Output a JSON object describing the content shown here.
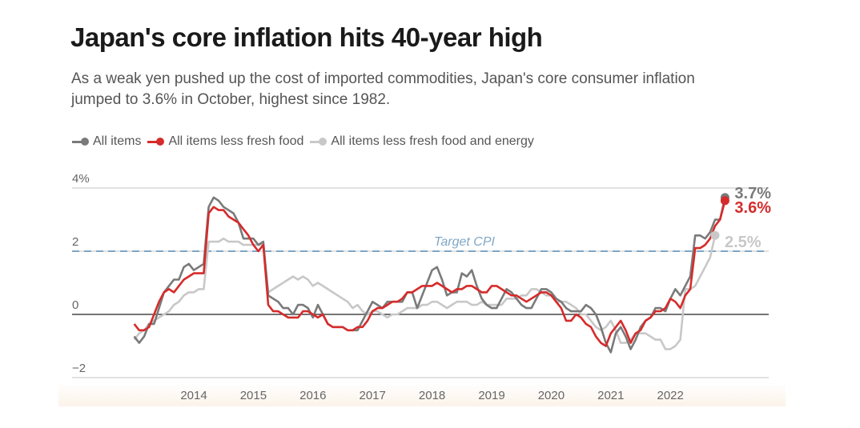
{
  "header": {
    "title": "Japan's core inflation hits 40-year high",
    "subtitle": "As a weak yen pushed up the cost of imported commodities, Japan's core consumer inflation jumped to 3.6% in October, highest since 1982."
  },
  "legend": [
    {
      "label": "All items",
      "color": "#7a7a7a"
    },
    {
      "label": "All items less fresh food",
      "color": "#d62b2b"
    },
    {
      "label": "All items less fresh food and energy",
      "color": "#c8c8c8"
    }
  ],
  "chart_data": {
    "type": "line",
    "title": "Japan's core inflation hits 40-year high",
    "xlabel": "",
    "ylabel": "%",
    "ylim": [
      -2,
      4
    ],
    "yticks": [
      {
        "value": 4,
        "label": "4%"
      },
      {
        "value": 2,
        "label": "2"
      },
      {
        "value": 0,
        "label": "0"
      },
      {
        "value": -2,
        "label": "−2"
      }
    ],
    "xticks": [
      {
        "value": 2014,
        "label": "2014"
      },
      {
        "value": 2015,
        "label": "2015"
      },
      {
        "value": 2016,
        "label": "2016"
      },
      {
        "value": 2017,
        "label": "2017"
      },
      {
        "value": 2018,
        "label": "2018"
      },
      {
        "value": 2019,
        "label": "2019"
      },
      {
        "value": 2020,
        "label": "2020"
      },
      {
        "value": 2021,
        "label": "2021"
      },
      {
        "value": 2022,
        "label": "2022"
      }
    ],
    "xlim": [
      2012.0,
      2023.1
    ],
    "x_start": "2013-01",
    "x_frequency": "monthly",
    "reference_line": {
      "value": 2,
      "label": "Target CPI",
      "color": "#7fa7c6"
    },
    "series": [
      {
        "name": "All items",
        "color": "#7a7a7a",
        "end_label": "3.7%",
        "values": [
          -0.7,
          -0.9,
          -0.7,
          -0.3,
          -0.3,
          0.2,
          0.7,
          0.9,
          1.1,
          1.1,
          1.5,
          1.6,
          1.4,
          1.5,
          1.6,
          3.4,
          3.7,
          3.6,
          3.4,
          3.3,
          3.2,
          2.9,
          2.4,
          2.4,
          2.4,
          2.2,
          2.3,
          0.6,
          0.5,
          0.4,
          0.2,
          0.2,
          0.0,
          0.3,
          0.3,
          0.2,
          -0.1,
          0.3,
          0.0,
          -0.3,
          -0.4,
          -0.4,
          -0.4,
          -0.5,
          -0.5,
          -0.5,
          -0.2,
          0.1,
          0.4,
          0.3,
          0.2,
          0.4,
          0.4,
          0.4,
          0.4,
          0.7,
          0.7,
          0.2,
          0.6,
          1.0,
          1.4,
          1.5,
          1.1,
          0.6,
          0.7,
          0.7,
          1.3,
          1.2,
          1.4,
          0.9,
          0.5,
          0.3,
          0.2,
          0.2,
          0.5,
          0.8,
          0.7,
          0.5,
          0.3,
          0.2,
          0.2,
          0.5,
          0.8,
          0.8,
          0.7,
          0.5,
          0.4,
          0.2,
          0.1,
          0.1,
          0.1,
          0.3,
          0.2,
          0.0,
          -0.4,
          -0.9,
          -1.2,
          -0.6,
          -0.4,
          -0.7,
          -1.1,
          -0.8,
          -0.4,
          -0.2,
          -0.1,
          0.2,
          0.2,
          0.1,
          0.5,
          0.8,
          0.6,
          0.9,
          1.2,
          2.5,
          2.5,
          2.4,
          2.6,
          3.0,
          3.0,
          3.7
        ]
      },
      {
        "name": "All items less fresh food",
        "color": "#d62b2b",
        "end_label": "3.6%",
        "values": [
          -0.3,
          -0.5,
          -0.5,
          -0.4,
          0.0,
          0.4,
          0.7,
          0.8,
          0.7,
          0.9,
          1.1,
          1.2,
          1.3,
          1.3,
          1.3,
          3.2,
          3.4,
          3.3,
          3.3,
          3.1,
          3.0,
          2.9,
          2.7,
          2.5,
          2.2,
          2.0,
          2.2,
          0.3,
          0.1,
          0.1,
          0.0,
          -0.1,
          -0.1,
          -0.1,
          0.1,
          0.1,
          0.0,
          -0.1,
          0.0,
          -0.3,
          -0.4,
          -0.4,
          -0.4,
          -0.5,
          -0.5,
          -0.4,
          -0.4,
          -0.2,
          0.1,
          0.2,
          0.2,
          0.3,
          0.4,
          0.4,
          0.5,
          0.7,
          0.7,
          0.8,
          0.9,
          0.9,
          0.9,
          1.0,
          0.9,
          0.8,
          0.7,
          0.8,
          0.8,
          0.9,
          0.9,
          0.8,
          0.7,
          0.7,
          0.9,
          0.9,
          0.8,
          0.7,
          0.6,
          0.6,
          0.5,
          0.4,
          0.5,
          0.6,
          0.7,
          0.7,
          0.6,
          0.4,
          0.2,
          -0.2,
          -0.2,
          0.0,
          -0.1,
          -0.3,
          -0.4,
          -0.7,
          -0.9,
          -1.0,
          -0.6,
          -0.4,
          -0.2,
          -0.5,
          -0.9,
          -0.6,
          -0.5,
          -0.2,
          -0.1,
          0.1,
          0.1,
          0.2,
          0.5,
          0.4,
          0.2,
          0.6,
          0.8,
          2.1,
          2.1,
          2.2,
          2.4,
          2.8,
          3.0,
          3.6
        ]
      },
      {
        "name": "All items less fresh food and energy",
        "color": "#c8c8c8",
        "end_label": "2.5%",
        "values": [
          -0.8,
          -0.6,
          -0.5,
          -0.3,
          -0.2,
          -0.1,
          0.0,
          0.1,
          0.3,
          0.4,
          0.6,
          0.7,
          0.7,
          0.8,
          0.8,
          2.3,
          2.3,
          2.3,
          2.4,
          2.3,
          2.3,
          2.3,
          2.2,
          2.2,
          2.2,
          2.2,
          2.2,
          0.7,
          0.8,
          0.9,
          1.0,
          1.1,
          1.2,
          1.1,
          1.2,
          1.1,
          0.9,
          1.0,
          0.9,
          0.8,
          0.7,
          0.6,
          0.5,
          0.4,
          0.2,
          0.3,
          0.1,
          0.0,
          0.1,
          0.1,
          0.0,
          -0.1,
          0.0,
          0.0,
          0.1,
          0.2,
          0.2,
          0.2,
          0.3,
          0.3,
          0.4,
          0.4,
          0.3,
          0.2,
          0.3,
          0.4,
          0.4,
          0.4,
          0.3,
          0.3,
          0.4,
          0.3,
          0.3,
          0.3,
          0.3,
          0.5,
          0.5,
          0.5,
          0.6,
          0.6,
          0.8,
          0.8,
          0.7,
          0.6,
          0.6,
          0.4,
          0.4,
          0.4,
          0.3,
          0.2,
          0.0,
          0.0,
          -0.2,
          -0.4,
          -0.5,
          -0.4,
          -0.2,
          -0.5,
          -0.9,
          -0.9,
          -0.8,
          -0.6,
          -0.6,
          -0.6,
          -0.7,
          -0.8,
          -0.8,
          -1.1,
          -1.1,
          -1.0,
          -0.8,
          0.8,
          0.8,
          0.9,
          1.2,
          1.5,
          1.8,
          2.5
        ]
      }
    ]
  }
}
